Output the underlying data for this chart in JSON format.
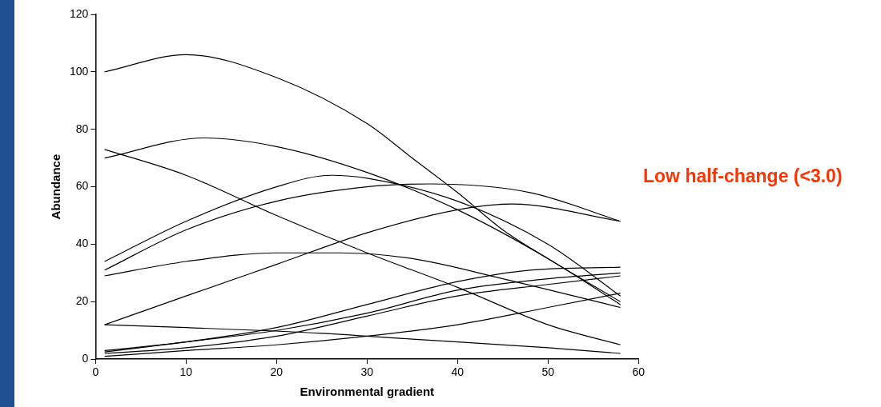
{
  "chart_data": {
    "type": "line",
    "xlabel": "Environmental gradient",
    "ylabel": "Abundance",
    "annotations": [
      "Low half-change (<3.0)"
    ],
    "xlim": [
      0,
      60
    ],
    "xticks": [
      0,
      10,
      20,
      30,
      40,
      50,
      60
    ],
    "ylim": [
      0,
      120
    ],
    "yticks": [
      0,
      20,
      40,
      60,
      80,
      100,
      120
    ],
    "grid": false,
    "legend": false,
    "marker": "none",
    "line_style": "solid",
    "series": [
      {
        "color": "#000000",
        "x": [
          1,
          10,
          20,
          30,
          35,
          40,
          45,
          50,
          58
        ],
        "values": [
          100,
          106,
          98,
          82,
          70,
          58,
          45,
          35,
          20
        ]
      },
      {
        "color": "#000000",
        "x": [
          1,
          12,
          20,
          30,
          40,
          50,
          58
        ],
        "values": [
          70,
          77,
          74,
          65,
          52,
          35,
          19
        ]
      },
      {
        "color": "#000000",
        "x": [
          1,
          10,
          20,
          30,
          40,
          50,
          58
        ],
        "values": [
          73,
          64,
          50,
          37,
          25,
          12,
          5
        ]
      },
      {
        "color": "#000000",
        "x": [
          1,
          10,
          20,
          26,
          30,
          40,
          50,
          58
        ],
        "values": [
          34,
          48,
          60,
          64,
          63,
          55,
          40,
          22
        ]
      },
      {
        "color": "#000000",
        "x": [
          1,
          10,
          20,
          30,
          37,
          48,
          58
        ],
        "values": [
          31,
          45,
          55,
          60,
          61,
          58,
          48
        ]
      },
      {
        "color": "#000000",
        "x": [
          1,
          10,
          20,
          30,
          40,
          46,
          58
        ],
        "values": [
          12,
          22,
          33,
          44,
          52,
          54,
          48
        ]
      },
      {
        "color": "#000000",
        "x": [
          1,
          10,
          20,
          27,
          35,
          45,
          58
        ],
        "values": [
          29,
          34,
          37,
          37,
          35,
          28,
          18
        ]
      },
      {
        "color": "#000000",
        "x": [
          1,
          10,
          25,
          35,
          50,
          58
        ],
        "values": [
          12,
          11,
          9,
          7,
          4,
          2
        ]
      },
      {
        "color": "#000000",
        "x": [
          1,
          10,
          20,
          30,
          40,
          48,
          58
        ],
        "values": [
          3,
          6,
          11,
          19,
          27,
          31,
          32
        ]
      },
      {
        "color": "#000000",
        "x": [
          1,
          10,
          20,
          30,
          40,
          50,
          58
        ],
        "values": [
          2.5,
          6,
          10,
          16,
          24,
          28,
          30
        ]
      },
      {
        "color": "#000000",
        "x": [
          1,
          10,
          20,
          30,
          40,
          50,
          58
        ],
        "values": [
          2,
          4,
          8,
          15,
          22,
          26,
          29
        ]
      },
      {
        "color": "#000000",
        "x": [
          1,
          10,
          20,
          30,
          40,
          50,
          58
        ],
        "values": [
          1,
          3,
          5,
          8,
          12,
          18,
          23
        ]
      }
    ]
  }
}
